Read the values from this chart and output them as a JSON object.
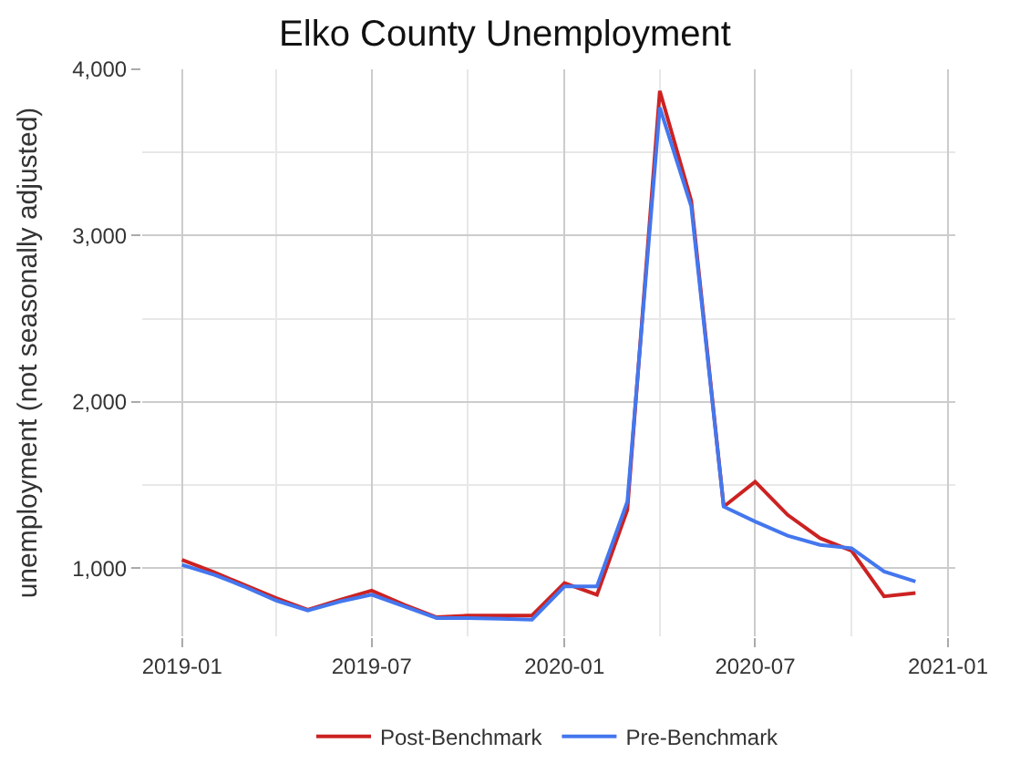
{
  "chart_data": {
    "type": "line",
    "title": "Elko County Unemployment",
    "ylabel": "unemployment (not seasonally adjusted)",
    "x": [
      "2019-01",
      "2019-02",
      "2019-03",
      "2019-04",
      "2019-05",
      "2019-06",
      "2019-07",
      "2019-08",
      "2019-09",
      "2019-10",
      "2019-11",
      "2019-12",
      "2020-01",
      "2020-02",
      "2020-03",
      "2020-04",
      "2020-05",
      "2020-06",
      "2020-07",
      "2020-08",
      "2020-09",
      "2020-10",
      "2020-11",
      "2020-12"
    ],
    "series": [
      {
        "name": "Post-Benchmark",
        "color": "#cc2222",
        "values": [
          1050,
          975,
          900,
          820,
          750,
          810,
          865,
          780,
          705,
          715,
          715,
          715,
          910,
          840,
          1350,
          3870,
          3210,
          1370,
          1520,
          1320,
          1180,
          1105,
          830,
          850
        ]
      },
      {
        "name": "Pre-Benchmark",
        "color": "#4477ee",
        "values": [
          1020,
          960,
          890,
          805,
          745,
          800,
          840,
          770,
          700,
          700,
          695,
          690,
          890,
          890,
          1400,
          3770,
          3175,
          1370,
          1280,
          1195,
          1140,
          1120,
          980,
          920
        ]
      }
    ],
    "xlim": [
      "2018-11-24",
      "2021-01-08"
    ],
    "xticks": [
      {
        "value": "2019-01",
        "label": "2019-01"
      },
      {
        "value": "2019-07",
        "label": "2019-07"
      },
      {
        "value": "2020-01",
        "label": "2020-01"
      },
      {
        "value": "2020-07",
        "label": "2020-07"
      },
      {
        "value": "2021-01",
        "label": "2021-01"
      }
    ],
    "ylim": [
      590,
      4000
    ],
    "yticks": [
      {
        "value": 1000,
        "label": "1,000"
      },
      {
        "value": 2000,
        "label": "2,000"
      },
      {
        "value": 3000,
        "label": "3,000"
      },
      {
        "value": 4000,
        "label": "4,000"
      }
    ],
    "grid": true,
    "legend": "bottom",
    "line_style": "solid"
  }
}
